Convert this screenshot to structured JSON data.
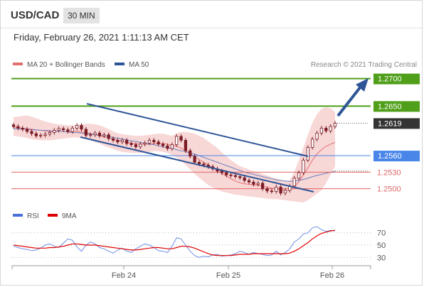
{
  "header": {
    "symbol": "USD/CAD",
    "timeframe": "30 MIN",
    "datetime": "Friday, February 26, 2021 1:11:13 AM CET"
  },
  "legend": {
    "ma20_label": "MA 20 + Bollinger Bands",
    "ma50_label": "MA 50",
    "credit": "Research © 2021 Trading Central",
    "rsi_label": "RSI",
    "rsi_ma_label": "9MA"
  },
  "colors": {
    "candle": "#7a1c25",
    "bollinger_fill": "#f8d7d7",
    "ma20": "#e36f6f",
    "ma50": "#6a83bf",
    "channel": "#2e5597",
    "resistance": "#4f9f1a",
    "support": "#4a86e8",
    "minor_support": "#e06666",
    "current": "#333333",
    "rsi": "#6e8ee3",
    "rsi_ma": "#e00000"
  },
  "chart_data": [
    {
      "type": "candlestick",
      "title": "USD/CAD",
      "price_axis": {
        "min": 1.2475,
        "max": 1.2715
      },
      "x_ticks": [
        "Feb 24",
        "Feb 25",
        "Feb 26"
      ],
      "last_price": 1.2619,
      "levels": [
        {
          "value": 1.27,
          "label": "1.2700",
          "kind": "resistance"
        },
        {
          "value": 1.265,
          "label": "1.2650",
          "kind": "resistance"
        },
        {
          "value": 1.2619,
          "label": "1.2619",
          "kind": "current"
        },
        {
          "value": 1.256,
          "label": "1.2560",
          "kind": "support"
        },
        {
          "value": 1.253,
          "label": "1.2530",
          "kind": "minor_support"
        },
        {
          "value": 1.25,
          "label": "1.2500",
          "kind": "minor_support"
        }
      ],
      "closes": [
        1.2613,
        1.261,
        1.2608,
        1.2604,
        1.26,
        1.2596,
        1.2597,
        1.2599,
        1.2602,
        1.2606,
        1.2609,
        1.2607,
        1.2604,
        1.261,
        1.2615,
        1.2608,
        1.2597,
        1.2598,
        1.2601,
        1.2596,
        1.2598,
        1.2591,
        1.2588,
        1.2585,
        1.2588,
        1.2582,
        1.258,
        1.2576,
        1.2581,
        1.2583,
        1.2588,
        1.2585,
        1.2581,
        1.2578,
        1.2573,
        1.258,
        1.2595,
        1.2588,
        1.2569,
        1.2559,
        1.2548,
        1.2545,
        1.2543,
        1.254,
        1.2536,
        1.2532,
        1.2529,
        1.2525,
        1.2524,
        1.2522,
        1.252,
        1.2515,
        1.2512,
        1.2508,
        1.251,
        1.25,
        1.2496,
        1.2495,
        1.2503,
        1.2492,
        1.2497,
        1.2505,
        1.2519,
        1.2529,
        1.2552,
        1.2575,
        1.259,
        1.2601,
        1.261,
        1.2605,
        1.2613,
        1.2619
      ],
      "bollinger": {
        "upper": [
          1.263,
          1.2631,
          1.2632,
          1.2633,
          1.2631,
          1.2628,
          1.2625,
          1.2622,
          1.262,
          1.2618,
          1.2617,
          1.2616,
          1.2615,
          1.2615,
          1.2616,
          1.2617,
          1.2618,
          1.2618,
          1.2617,
          1.2615,
          1.2612,
          1.2608,
          1.2604,
          1.2601,
          1.2599,
          1.2598,
          1.2597,
          1.2596,
          1.2596,
          1.2597,
          1.2598,
          1.2599,
          1.26,
          1.26,
          1.2598,
          1.2596,
          1.2601,
          1.2603,
          1.2603,
          1.2602,
          1.26,
          1.2596,
          1.2592,
          1.2586,
          1.258,
          1.2574,
          1.2566,
          1.2559,
          1.2552,
          1.2546,
          1.2541,
          1.2538,
          1.2535,
          1.2532,
          1.253,
          1.2527,
          1.2524,
          1.2521,
          1.2519,
          1.2516,
          1.2514,
          1.2516,
          1.253,
          1.2552,
          1.2575,
          1.2598,
          1.262,
          1.2635,
          1.2645,
          1.2648,
          1.2646,
          1.264
        ],
        "lower": [
          1.2596,
          1.2595,
          1.2594,
          1.2592,
          1.259,
          1.2589,
          1.2588,
          1.2588,
          1.2588,
          1.2589,
          1.259,
          1.2591,
          1.2592,
          1.2593,
          1.2593,
          1.2592,
          1.2591,
          1.2588,
          1.2585,
          1.2582,
          1.2578,
          1.2575,
          1.2572,
          1.2569,
          1.2567,
          1.2566,
          1.2565,
          1.2565,
          1.2565,
          1.2566,
          1.2567,
          1.2568,
          1.2568,
          1.2567,
          1.2565,
          1.2561,
          1.2557,
          1.2551,
          1.2543,
          1.2535,
          1.2527,
          1.252,
          1.2513,
          1.2507,
          1.2502,
          1.2498,
          1.2495,
          1.2493,
          1.2491,
          1.2489,
          1.2488,
          1.2487,
          1.2486,
          1.2485,
          1.2484,
          1.2483,
          1.2482,
          1.2481,
          1.2481,
          1.248,
          1.2479,
          1.2478,
          1.2477,
          1.2476,
          1.2475,
          1.2479,
          1.2485,
          1.2491,
          1.2497,
          1.251,
          1.2525,
          1.254
        ]
      },
      "ma20": [
        1.2612,
        1.2611,
        1.261,
        1.2609,
        1.2608,
        1.2607,
        1.2606,
        1.2605,
        1.2604,
        1.2604,
        1.2604,
        1.2604,
        1.2604,
        1.2604,
        1.2604,
        1.2603,
        1.2602,
        1.26,
        1.2598,
        1.2596,
        1.2594,
        1.2592,
        1.259,
        1.2588,
        1.2586,
        1.2584,
        1.2583,
        1.2582,
        1.2581,
        1.2581,
        1.2581,
        1.2582,
        1.2582,
        1.2582,
        1.2581,
        1.2579,
        1.2577,
        1.2574,
        1.2569,
        1.2564,
        1.2558,
        1.2553,
        1.2548,
        1.2543,
        1.2538,
        1.2533,
        1.2528,
        1.2523,
        1.2518,
        1.2514,
        1.2511,
        1.2509,
        1.2508,
        1.2507,
        1.2506,
        1.2505,
        1.2503,
        1.2501,
        1.25,
        1.2498,
        1.2497,
        1.2497,
        1.2503,
        1.2513,
        1.2525,
        1.2538,
        1.2552,
        1.2563,
        1.2571,
        1.2577,
        1.2581,
        1.2584
      ],
      "ma50": [
        1.2609,
        1.2609,
        1.2608,
        1.2608,
        1.2607,
        1.2607,
        1.2606,
        1.2606,
        1.2605,
        1.2605,
        1.2604,
        1.2604,
        1.2603,
        1.2602,
        1.2602,
        1.2601,
        1.26,
        1.2599,
        1.2598,
        1.2597,
        1.2596,
        1.2595,
        1.2593,
        1.2592,
        1.259,
        1.2589,
        1.2587,
        1.2586,
        1.2584,
        1.2583,
        1.2581,
        1.258,
        1.2578,
        1.2576,
        1.2574,
        1.2573,
        1.2571,
        1.2569,
        1.2567,
        1.2565,
        1.2563,
        1.256,
        1.2557,
        1.2554,
        1.2551,
        1.2548,
        1.2545,
        1.2542,
        1.2539,
        1.2536,
        1.2533,
        1.253,
        1.2528,
        1.2526,
        1.2524,
        1.2522,
        1.252,
        1.2518,
        1.2516,
        1.2515,
        1.2514,
        1.2513,
        1.2514,
        1.2515,
        1.2517,
        1.2519,
        1.2522,
        1.2524,
        1.2526,
        1.2528,
        1.253,
        1.2532
      ]
    },
    {
      "type": "line",
      "title": "RSI",
      "ylim": [
        20,
        80
      ],
      "y_ticks": [
        "70",
        "50",
        "30"
      ],
      "x_ticks": [
        "Feb 24",
        "Feb 25",
        "Feb 26"
      ],
      "series": [
        {
          "name": "RSI",
          "values": [
            48,
            46,
            44,
            43,
            41,
            42,
            45,
            50,
            52,
            48,
            46,
            53,
            60,
            58,
            47,
            40,
            50,
            55,
            52,
            46,
            44,
            40,
            37,
            42,
            45,
            40,
            38,
            44,
            48,
            52,
            50,
            46,
            41,
            40,
            38,
            48,
            62,
            60,
            50,
            40,
            33,
            30,
            32,
            31,
            34,
            35,
            32,
            33,
            34,
            36,
            40,
            38,
            35,
            38,
            36,
            35,
            33,
            34,
            40,
            34,
            38,
            44,
            55,
            60,
            68,
            70,
            78,
            80,
            75,
            72,
            74,
            73
          ]
        },
        {
          "name": "9MA",
          "values": [
            50,
            49,
            48,
            47,
            46,
            45,
            45,
            45,
            46,
            46,
            47,
            48,
            50,
            52,
            52,
            51,
            50,
            50,
            50,
            49,
            48,
            47,
            46,
            45,
            44,
            43,
            42,
            42,
            43,
            44,
            45,
            46,
            46,
            45,
            44,
            44,
            46,
            48,
            48,
            47,
            45,
            42,
            39,
            36,
            34,
            33,
            33,
            33,
            33,
            34,
            35,
            35,
            35,
            36,
            36,
            36,
            36,
            36,
            36,
            36,
            36,
            37,
            40,
            44,
            49,
            54,
            60,
            65,
            69,
            71,
            73,
            74
          ]
        }
      ]
    }
  ]
}
